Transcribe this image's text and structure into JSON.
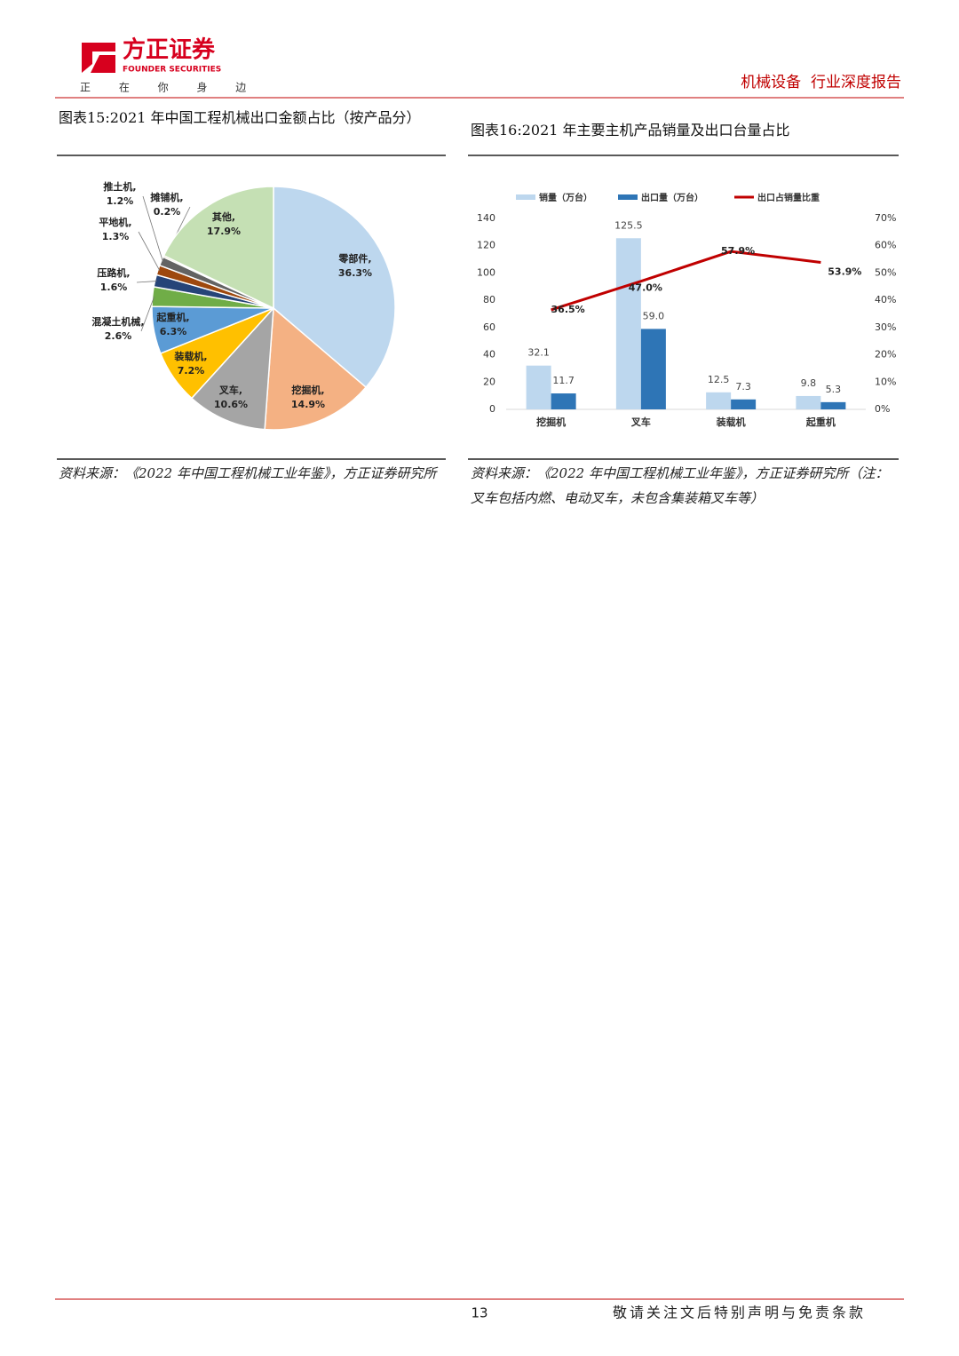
{
  "header": {
    "brand": "方正证券",
    "brand_en": "FOUNDER SECURITIES",
    "slogan": "正 在 你 身 边",
    "report_type": "机械设备  行业深度报告"
  },
  "captions": [
    "图表15:2021 年中国工程机械出口金额占比（按产品分）",
    "图表16:2021 年主要主机产品销量及出口台量占比"
  ],
  "sources": [
    "资料来源：《2022 年中国工程机械工业年鉴》，方正证券研究所",
    "资料来源：《2022 年中国工程机械工业年鉴》，方正证券研究所（注：叉车包括内燃、电动叉车，未包含集装箱叉车等）"
  ],
  "footer": {
    "page": "13",
    "notice": "敬请关注文后特别声明与免责条款"
  },
  "chart_data": [
    {
      "type": "pie",
      "categories": [
        "零部件,",
        "挖掘机,",
        "叉车,",
        "装载机,",
        "起重机,",
        "混凝土机械,",
        "压路机,",
        "平地机,",
        "推土机,",
        "摊铺机,",
        "其他,"
      ],
      "values": [
        36.3,
        14.9,
        10.6,
        7.2,
        6.3,
        2.6,
        1.6,
        1.3,
        1.2,
        0.2,
        17.9
      ],
      "value_labels": [
        "36.3%",
        "14.9%",
        "10.6%",
        "7.2%",
        "6.3%",
        "2.6%",
        "1.6%",
        "1.3%",
        "1.2%",
        "0.2%",
        "17.9%"
      ],
      "colors": [
        "#bdd7ee",
        "#f4b183",
        "#a5a5a5",
        "#ffc000",
        "#5b9bd5",
        "#70ad47",
        "#264478",
        "#9e480e",
        "#636363",
        "#997300",
        "#c5e0b4"
      ]
    },
    {
      "type": "bar_line",
      "categories": [
        "挖掘机",
        "叉车",
        "装载机",
        "起重机"
      ],
      "series": [
        {
          "name": "销量（万台）",
          "color": "#bdd7ee",
          "values": [
            32.1,
            125.5,
            12.5,
            9.8
          ]
        },
        {
          "name": "出口量（万台）",
          "color": "#2e75b6",
          "values": [
            11.7,
            59.0,
            7.3,
            5.3
          ],
          "value_labels": [
            "11.7",
            "59.0",
            "7.3",
            "5.3"
          ]
        },
        {
          "name": "出口占销量比重",
          "color": "#c00000",
          "axis": "y2",
          "values": [
            36.5,
            47.0,
            57.9,
            53.9
          ],
          "value_labels": [
            "36.5%",
            "47.0%",
            "57.9%",
            "53.9%"
          ]
        }
      ],
      "ylim": [
        0,
        140
      ],
      "yticks": [
        0,
        20,
        40,
        60,
        80,
        100,
        120,
        140
      ],
      "y2lim": [
        0,
        70
      ],
      "y2ticks": [
        {
          "value": 0,
          "label": "0%"
        },
        {
          "value": 10,
          "label": "10%"
        },
        {
          "value": 20,
          "label": "20%"
        },
        {
          "value": 30,
          "label": "30%"
        },
        {
          "value": 40,
          "label": "40%"
        },
        {
          "value": 50,
          "label": "50%"
        },
        {
          "value": 60,
          "label": "60%"
        },
        {
          "value": 70,
          "label": "70%"
        }
      ]
    }
  ]
}
